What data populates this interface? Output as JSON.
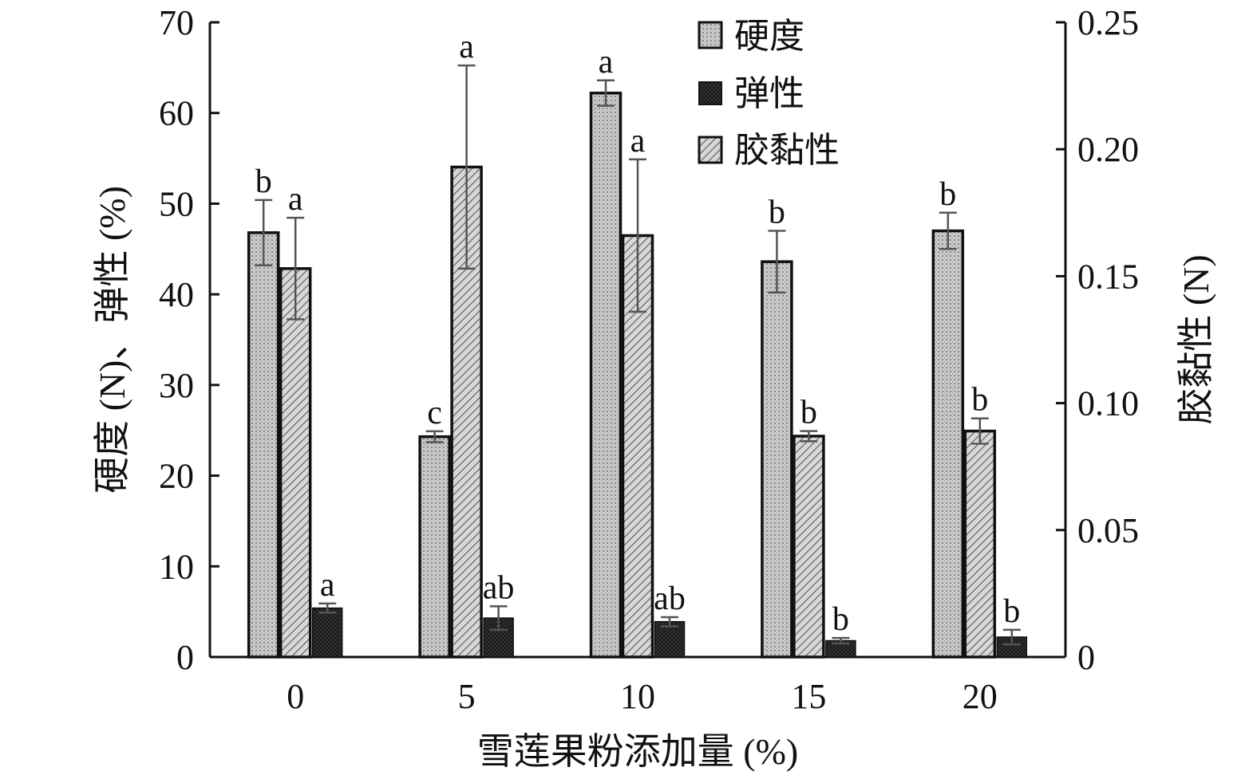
{
  "chart_data": {
    "type": "bar",
    "xlabel": "雪莲果粉添加量 (%)",
    "ylabel_left": "硬度 (N)、弹性 (%)",
    "ylabel_right": "胶黏性 (N)",
    "categories": [
      "0",
      "5",
      "10",
      "15",
      "20"
    ],
    "y_left_lim": [
      0,
      70
    ],
    "y_left_ticks": [
      "0",
      "10",
      "20",
      "30",
      "40",
      "50",
      "60",
      "70"
    ],
    "y_right_lim": [
      0,
      0.25
    ],
    "y_right_ticks": [
      "0",
      "0.05",
      "0.10",
      "0.15",
      "0.20",
      "0.25"
    ],
    "legend_position": "top-right",
    "grid": false,
    "series": [
      {
        "name": "硬度",
        "axis": "left",
        "pattern": "light-dots",
        "values": [
          46.8,
          24.3,
          62.2,
          43.6,
          47.0
        ],
        "errors": [
          3.6,
          0.6,
          1.4,
          3.4,
          2.0
        ],
        "labels": [
          "b",
          "c",
          "a",
          "b",
          "b"
        ]
      },
      {
        "name": "弹性",
        "axis": "left",
        "pattern": "dark-cross",
        "values": [
          5.4,
          4.3,
          3.9,
          1.8,
          2.2
        ],
        "errors": [
          0.5,
          1.3,
          0.5,
          0.3,
          0.8
        ],
        "labels": [
          "a",
          "ab",
          "ab",
          "b",
          "b"
        ]
      },
      {
        "name": "胶黏性",
        "axis": "right",
        "pattern": "diagonal-hatch",
        "values": [
          0.153,
          0.193,
          0.166,
          0.087,
          0.089
        ],
        "errors": [
          0.02,
          0.04,
          0.03,
          0.002,
          0.005
        ],
        "labels": [
          "a",
          "a",
          "a",
          "b",
          "b"
        ]
      }
    ]
  }
}
